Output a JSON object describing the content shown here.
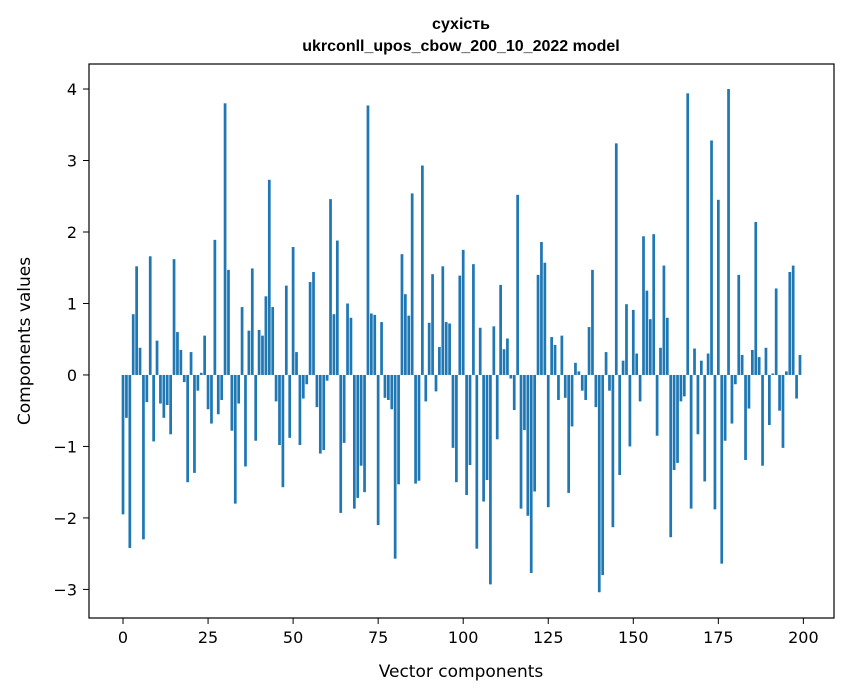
{
  "chart_data": {
    "type": "bar",
    "title_line1": "сухість",
    "title_line2": "ukrconll_upos_cbow_200_10_2022 model",
    "xlabel": "Vector components",
    "ylabel": "Components values",
    "xlim": [
      -10,
      209
    ],
    "ylim": [
      -3.4,
      4.35
    ],
    "x_ticks": [
      0,
      25,
      50,
      75,
      100,
      125,
      150,
      175,
      200
    ],
    "x_tick_labels": [
      "0",
      "25",
      "50",
      "75",
      "100",
      "125",
      "150",
      "175",
      "200"
    ],
    "y_ticks": [
      -3,
      -2,
      -1,
      0,
      1,
      2,
      3,
      4
    ],
    "y_tick_labels": [
      "−3",
      "−2",
      "−1",
      "0",
      "1",
      "2",
      "3",
      "4"
    ],
    "bar_color": "#1f77b4",
    "grid": false,
    "values": [
      -1.95,
      -0.6,
      -2.42,
      0.85,
      1.52,
      0.38,
      -2.3,
      -0.38,
      1.66,
      -0.93,
      0.48,
      -0.4,
      -0.6,
      -0.42,
      -0.83,
      1.62,
      0.6,
      0.35,
      -0.1,
      -1.5,
      0.32,
      -1.37,
      -0.22,
      0.03,
      0.55,
      -0.48,
      -0.68,
      1.89,
      -0.55,
      -0.35,
      3.8,
      1.47,
      -0.78,
      -1.8,
      -0.4,
      0.95,
      -1.28,
      0.62,
      1.49,
      -0.92,
      0.63,
      0.55,
      1.1,
      2.73,
      0.95,
      -0.37,
      -0.98,
      -1.57,
      1.25,
      -0.88,
      1.79,
      0.32,
      -0.98,
      -0.33,
      -0.13,
      1.3,
      1.44,
      -0.45,
      -1.1,
      -1.05,
      -0.08,
      2.46,
      0.85,
      1.88,
      -1.93,
      -0.95,
      1.0,
      0.8,
      -1.87,
      -1.72,
      -1.27,
      -1.64,
      3.77,
      0.86,
      0.84,
      -2.1,
      0.74,
      -0.32,
      -0.35,
      -0.48,
      -2.57,
      -1.53,
      1.69,
      1.13,
      0.83,
      2.54,
      -1.52,
      -1.48,
      2.93,
      -0.37,
      0.73,
      1.41,
      -0.23,
      0.39,
      1.52,
      0.74,
      0.72,
      -1.02,
      -1.5,
      1.39,
      1.75,
      -1.68,
      -1.26,
      1.55,
      -2.43,
      0.66,
      -1.77,
      -1.47,
      -2.93,
      0.68,
      -0.9,
      1.26,
      0.36,
      0.51,
      -0.05,
      -0.49,
      2.52,
      -1.87,
      -0.77,
      -1.97,
      -2.77,
      -1.63,
      1.4,
      1.86,
      1.57,
      -1.85,
      0.53,
      0.42,
      -0.35,
      0.55,
      -0.32,
      -1.65,
      -0.72,
      0.17,
      0.05,
      -0.22,
      -0.35,
      0.67,
      1.47,
      -0.45,
      -3.04,
      -2.8,
      0.32,
      -0.22,
      -2.13,
      3.24,
      -1.4,
      0.2,
      0.99,
      -1.0,
      0.91,
      0.3,
      -0.37,
      1.94,
      1.18,
      0.78,
      1.97,
      -0.85,
      0.38,
      1.53,
      0.8,
      -2.27,
      -1.33,
      -1.23,
      -0.37,
      -0.3,
      3.94,
      -1.87,
      0.37,
      -0.83,
      0.2,
      -1.49,
      0.3,
      3.28,
      -1.88,
      2.45,
      -2.64,
      -0.92,
      4.0,
      -0.68,
      -0.13,
      1.4,
      0.28,
      -1.19,
      -0.47,
      0.35,
      2.14,
      0.25,
      -1.27,
      0.38,
      -0.7,
      0.02,
      1.21,
      -0.5,
      -1.02,
      0.05,
      1.44,
      1.53,
      -0.33,
      0.28
    ]
  }
}
